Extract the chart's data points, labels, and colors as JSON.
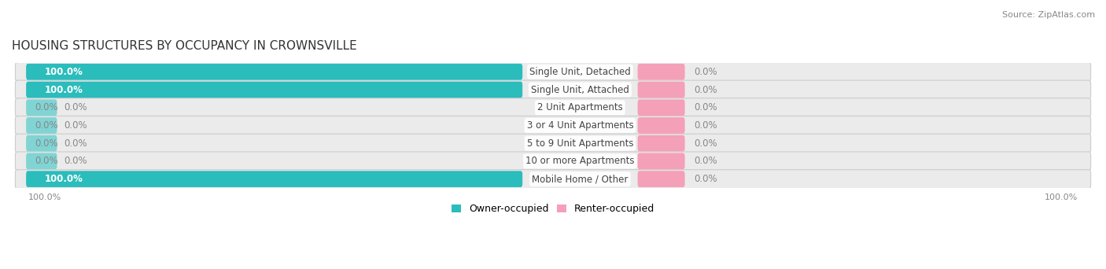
{
  "title": "HOUSING STRUCTURES BY OCCUPANCY IN CROWNSVILLE",
  "source": "Source: ZipAtlas.com",
  "categories": [
    "Single Unit, Detached",
    "Single Unit, Attached",
    "2 Unit Apartments",
    "3 or 4 Unit Apartments",
    "5 to 9 Unit Apartments",
    "10 or more Apartments",
    "Mobile Home / Other"
  ],
  "owner_pct": [
    100.0,
    100.0,
    0.0,
    0.0,
    0.0,
    0.0,
    100.0
  ],
  "renter_pct": [
    0.0,
    0.0,
    0.0,
    0.0,
    0.0,
    0.0,
    0.0
  ],
  "owner_color": "#2bbcbc",
  "renter_color": "#f4a0b8",
  "owner_stub_color": "#80d4d4",
  "row_bg_color": "#ebebeb",
  "title_fontsize": 11,
  "source_fontsize": 8,
  "label_fontsize": 8.5,
  "cat_fontsize": 8.5,
  "legend_fontsize": 9,
  "axis_label_fontsize": 8,
  "background_color": "#ffffff",
  "figure_width": 14.06,
  "figure_height": 3.42
}
